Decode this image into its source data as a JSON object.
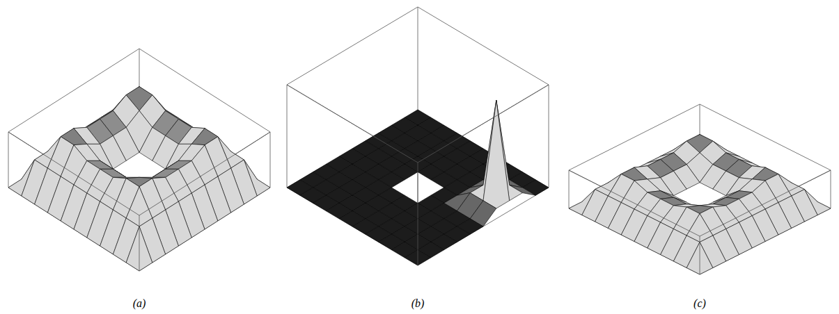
{
  "chart_data": [
    {
      "type": "surface",
      "title": "(a)",
      "tick_labels": false,
      "zlim": [
        0,
        0.6
      ],
      "z": [
        [
          0,
          0,
          0,
          0,
          0,
          0,
          0,
          0,
          0,
          0,
          0
        ],
        [
          0,
          0.3,
          0.3,
          0.3,
          0.3,
          0.3,
          0.3,
          0.3,
          0.3,
          0.3,
          0
        ],
        [
          0,
          0.3,
          0.55,
          0.55,
          0.47,
          0.47,
          0.47,
          0.55,
          0.55,
          0.3,
          0
        ],
        [
          0,
          0.3,
          0.55,
          0.47,
          0.38,
          0.38,
          0.38,
          0.47,
          0.55,
          0.3,
          0
        ],
        [
          0,
          0.3,
          0.47,
          0.38,
          0.2,
          0.2,
          0.2,
          0.38,
          0.47,
          0.3,
          0
        ],
        [
          0,
          0.3,
          0.47,
          0.38,
          0.2,
          null,
          0.2,
          0.38,
          0.47,
          0.3,
          0
        ],
        [
          0,
          0.3,
          0.47,
          0.38,
          0.2,
          0.2,
          0.2,
          0.38,
          0.47,
          0.3,
          0
        ],
        [
          0,
          0.3,
          0.55,
          0.47,
          0.38,
          0.38,
          0.38,
          0.47,
          0.55,
          0.3,
          0
        ],
        [
          0,
          0.3,
          0.55,
          0.55,
          0.47,
          0.47,
          0.47,
          0.55,
          0.55,
          0.3,
          0
        ],
        [
          0,
          0.3,
          0.3,
          0.3,
          0.3,
          0.3,
          0.3,
          0.3,
          0.3,
          0.3,
          0
        ],
        [
          0,
          0,
          0,
          0,
          0,
          0,
          0,
          0,
          0,
          0,
          0
        ]
      ]
    },
    {
      "type": "surface",
      "title": "(b)",
      "tick_labels": false,
      "zlim": [
        0,
        1
      ],
      "z": [
        [
          0,
          0,
          0,
          0,
          0,
          0,
          0,
          0,
          0,
          0,
          0
        ],
        [
          0,
          0,
          0,
          0,
          0,
          0,
          0,
          0,
          0,
          0,
          0
        ],
        [
          0,
          0,
          0,
          0,
          0,
          0,
          0,
          0,
          0.1,
          0.1,
          0.1
        ],
        [
          0,
          0,
          0,
          0,
          0,
          0,
          0,
          0,
          0.1,
          1,
          0.1
        ],
        [
          0,
          0,
          0,
          0,
          0,
          0,
          0,
          0,
          0.1,
          0.1,
          0.1
        ],
        [
          0,
          0,
          0,
          0,
          0,
          null,
          0,
          0,
          0,
          0,
          0
        ],
        [
          0,
          0,
          0,
          0,
          0,
          0,
          0,
          0,
          0,
          0,
          0
        ],
        [
          0,
          0,
          0,
          0,
          0,
          0,
          0,
          0,
          0,
          0,
          0
        ],
        [
          0,
          0,
          0,
          0,
          0,
          0,
          0,
          0,
          0,
          0,
          0
        ],
        [
          0,
          0,
          0,
          0,
          0,
          0,
          0,
          0,
          0,
          0,
          0
        ],
        [
          0,
          0,
          0,
          0,
          0,
          0,
          0,
          0,
          0,
          0,
          0
        ]
      ]
    },
    {
      "type": "surface",
      "title": "(c)",
      "tick_labels": false,
      "zlim": [
        0,
        0.3
      ],
      "z": [
        [
          0,
          0,
          0,
          0,
          0,
          0,
          0,
          0,
          0,
          0,
          0
        ],
        [
          0,
          0.15,
          0.15,
          0.15,
          0.15,
          0.15,
          0.15,
          0.15,
          0.15,
          0.15,
          0
        ],
        [
          0,
          0.15,
          0.27,
          0.27,
          0.23,
          0.23,
          0.23,
          0.27,
          0.27,
          0.15,
          0
        ],
        [
          0,
          0.15,
          0.27,
          0.23,
          0.19,
          0.19,
          0.19,
          0.23,
          0.27,
          0.15,
          0
        ],
        [
          0,
          0.15,
          0.23,
          0.19,
          0.1,
          0.1,
          0.1,
          0.19,
          0.23,
          0.15,
          0
        ],
        [
          0,
          0.15,
          0.23,
          0.19,
          0.1,
          null,
          0.1,
          0.19,
          0.23,
          0.15,
          0
        ],
        [
          0,
          0.15,
          0.23,
          0.19,
          0.1,
          0.1,
          0.1,
          0.19,
          0.23,
          0.15,
          0
        ],
        [
          0,
          0.15,
          0.27,
          0.23,
          0.19,
          0.19,
          0.19,
          0.23,
          0.27,
          0.15,
          0
        ],
        [
          0,
          0.15,
          0.27,
          0.27,
          0.23,
          0.23,
          0.23,
          0.27,
          0.27,
          0.15,
          0
        ],
        [
          0,
          0.15,
          0.15,
          0.15,
          0.15,
          0.15,
          0.15,
          0.15,
          0.15,
          0.15,
          0
        ],
        [
          0,
          0,
          0,
          0,
          0,
          0,
          0,
          0,
          0,
          0,
          0
        ]
      ]
    }
  ]
}
